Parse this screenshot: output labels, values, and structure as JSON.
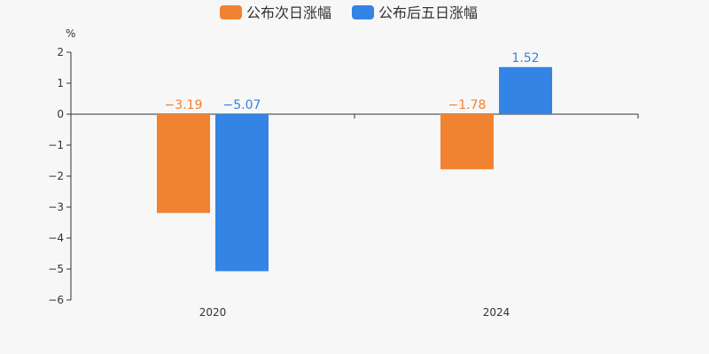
{
  "chart_data": {
    "type": "bar",
    "categories": [
      "2020",
      "2024"
    ],
    "series": [
      {
        "name": "公布次日涨幅",
        "values": [
          -3.19,
          -1.78
        ],
        "labels": [
          "−3.19",
          "−1.78"
        ],
        "color": "#f08232"
      },
      {
        "name": "公布后五日涨幅",
        "values": [
          -5.07,
          1.52
        ],
        "labels": [
          "−5.07",
          "1.52"
        ],
        "color": "#3384e5"
      }
    ],
    "ylabel": "%",
    "ylim": [
      -6,
      2
    ],
    "yticks": [
      2,
      1,
      0,
      -1,
      -2,
      -3,
      -4,
      -5,
      -6
    ],
    "ytick_labels": [
      "2",
      "1",
      "0",
      "−1",
      "−2",
      "−3",
      "−4",
      "−5",
      "−6"
    ],
    "legend": "top-center",
    "grid": false
  }
}
